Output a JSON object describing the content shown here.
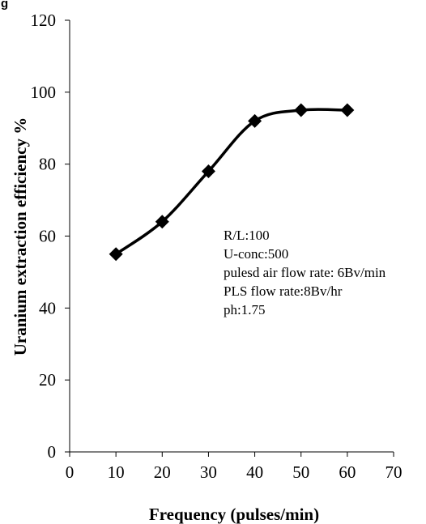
{
  "chart_data": {
    "type": "line",
    "title": "",
    "partial_label": "g",
    "xlabel": "Frequency (pulses/min)",
    "ylabel": "Uranium  extraction efficiency %",
    "xlim": [
      0,
      70
    ],
    "ylim": [
      0,
      120
    ],
    "x_ticks": [
      0,
      10,
      20,
      30,
      40,
      50,
      60,
      70
    ],
    "y_ticks": [
      0,
      20,
      40,
      60,
      80,
      100,
      120
    ],
    "grid": false,
    "smooth": true,
    "marker": "diamond",
    "line_color": "#000000",
    "series": [
      {
        "x": [
          10,
          20,
          30,
          40,
          50,
          60
        ],
        "y": [
          55,
          64,
          78,
          92,
          95,
          95
        ]
      }
    ],
    "annotations": [
      "R/L:100",
      "U-conc:500",
      "pulesd air flow rate: 6Bv/min",
      "PLS flow rate:8Bv/hr",
      "ph:1.75"
    ]
  }
}
